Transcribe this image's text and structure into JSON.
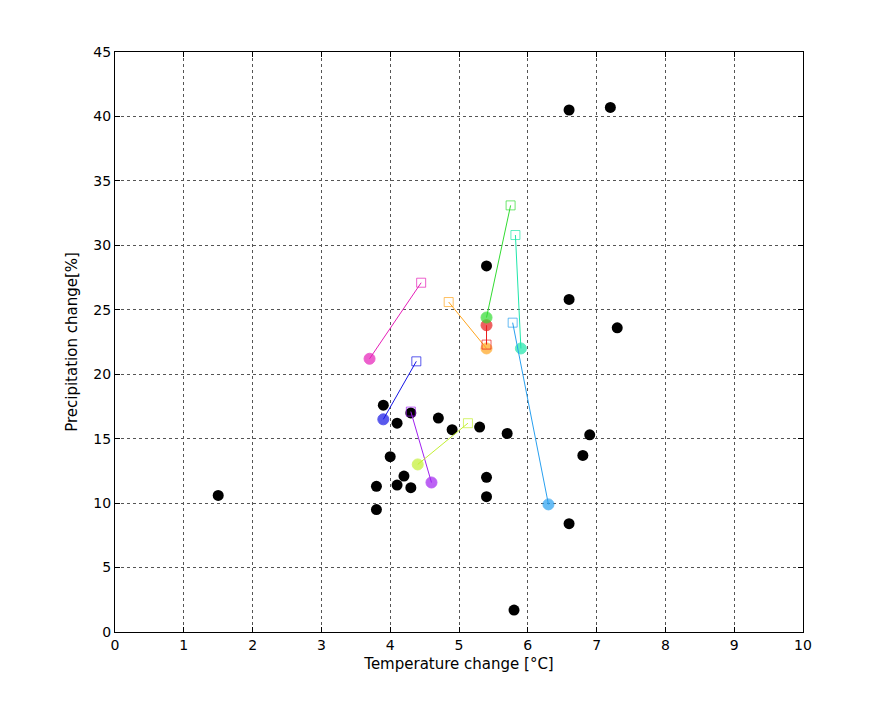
{
  "chart_data": {
    "type": "scatter",
    "x_label": "Temperature change [°C]",
    "y_label": "Precipitation change[%]",
    "xlim": [
      0,
      10
    ],
    "xticks": [
      0,
      1,
      2,
      3,
      4,
      5,
      6,
      7,
      8,
      9,
      10
    ],
    "ylim": [
      0,
      45
    ],
    "yticks": [
      0,
      5,
      10,
      15,
      20,
      25,
      30,
      35,
      40,
      45
    ],
    "grid": true,
    "series": [
      {
        "color": "#000000",
        "marker": "circle",
        "x": [
          1.5,
          3.8,
          3.8,
          3.9,
          4.0,
          4.1,
          4.1,
          4.2,
          4.3,
          4.3,
          4.7,
          4.9,
          5.3,
          5.4,
          5.4,
          5.4,
          5.7,
          5.8,
          6.6,
          7.2,
          6.6,
          7.3,
          6.9,
          6.8,
          6.6
        ],
        "y": [
          10.6,
          9.5,
          11.3,
          17.6,
          13.6,
          11.4,
          16.2,
          12.1,
          11.2,
          17.0,
          16.6,
          15.7,
          15.9,
          28.4,
          12.0,
          10.5,
          15.4,
          1.7,
          40.5,
          40.7,
          25.8,
          23.6,
          15.3,
          13.7,
          8.4
        ]
      },
      {
        "color": "#e61eb8",
        "marker": "circle_square",
        "x": [
          3.7,
          4.45
        ],
        "y": [
          21.2,
          27.1
        ]
      },
      {
        "color": "#1414e6",
        "marker": "circle_square",
        "x": [
          3.9,
          4.38
        ],
        "y": [
          16.5,
          21.0
        ]
      },
      {
        "color": "#a020f0",
        "marker": "circle_square",
        "x": [
          4.6,
          4.3
        ],
        "y": [
          11.6,
          17.1
        ]
      },
      {
        "color": "#c3f032",
        "marker": "circle_square",
        "x": [
          4.4,
          5.13
        ],
        "y": [
          13.0,
          16.2
        ]
      },
      {
        "color": "#ffa51e",
        "marker": "circle_square",
        "x": [
          5.4,
          4.85
        ],
        "y": [
          22.0,
          25.6
        ]
      },
      {
        "color": "#e81c1c",
        "marker": "circle_square",
        "x": [
          5.4,
          5.4
        ],
        "y": [
          23.8,
          22.3
        ]
      },
      {
        "color": "#32dc32",
        "marker": "circle_square",
        "x": [
          5.4,
          5.75
        ],
        "y": [
          24.4,
          33.1
        ]
      },
      {
        "color": "#1ee6aa",
        "marker": "circle_square",
        "x": [
          5.9,
          5.82
        ],
        "y": [
          22.0,
          30.8
        ]
      },
      {
        "color": "#28a0f0",
        "marker": "circle_square",
        "x": [
          6.3,
          5.78
        ],
        "y": [
          9.9,
          24.0
        ]
      }
    ]
  }
}
